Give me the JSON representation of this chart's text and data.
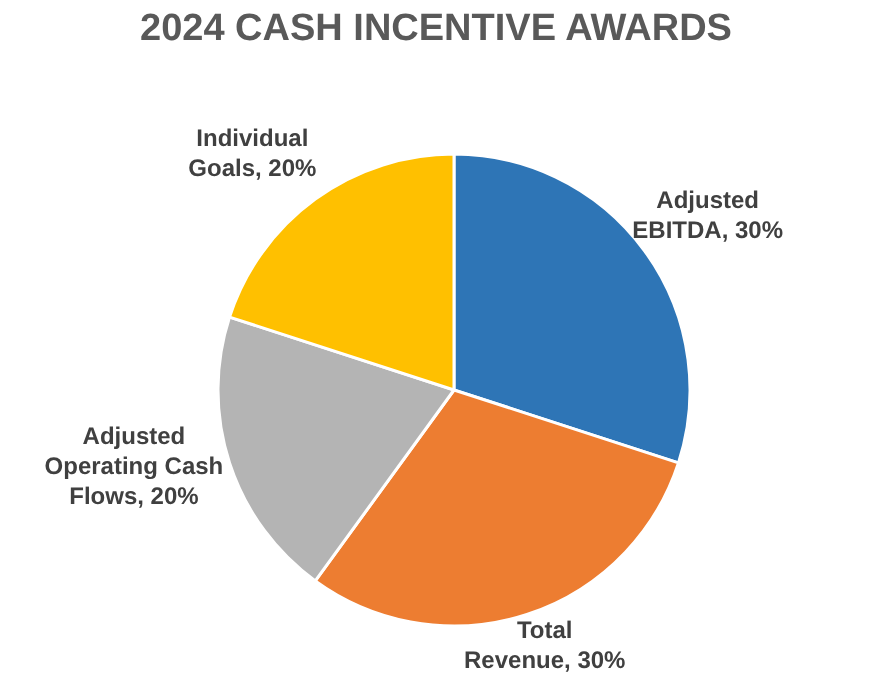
{
  "chart_data": {
    "type": "pie",
    "title": "2024 CASH INCENTIVE AWARDS",
    "categories": [
      "Adjusted EBITDA",
      "Total Revenue",
      "Adjusted Operating Cash Flows",
      "Individual Goals"
    ],
    "values": [
      30,
      30,
      20,
      20
    ],
    "colors": [
      "#2e75b6",
      "#ed7d31",
      "#b4b4b4",
      "#ffc000"
    ],
    "value_labels": [
      "30%",
      "30%",
      "20%",
      "20%"
    ],
    "legend": false
  }
}
